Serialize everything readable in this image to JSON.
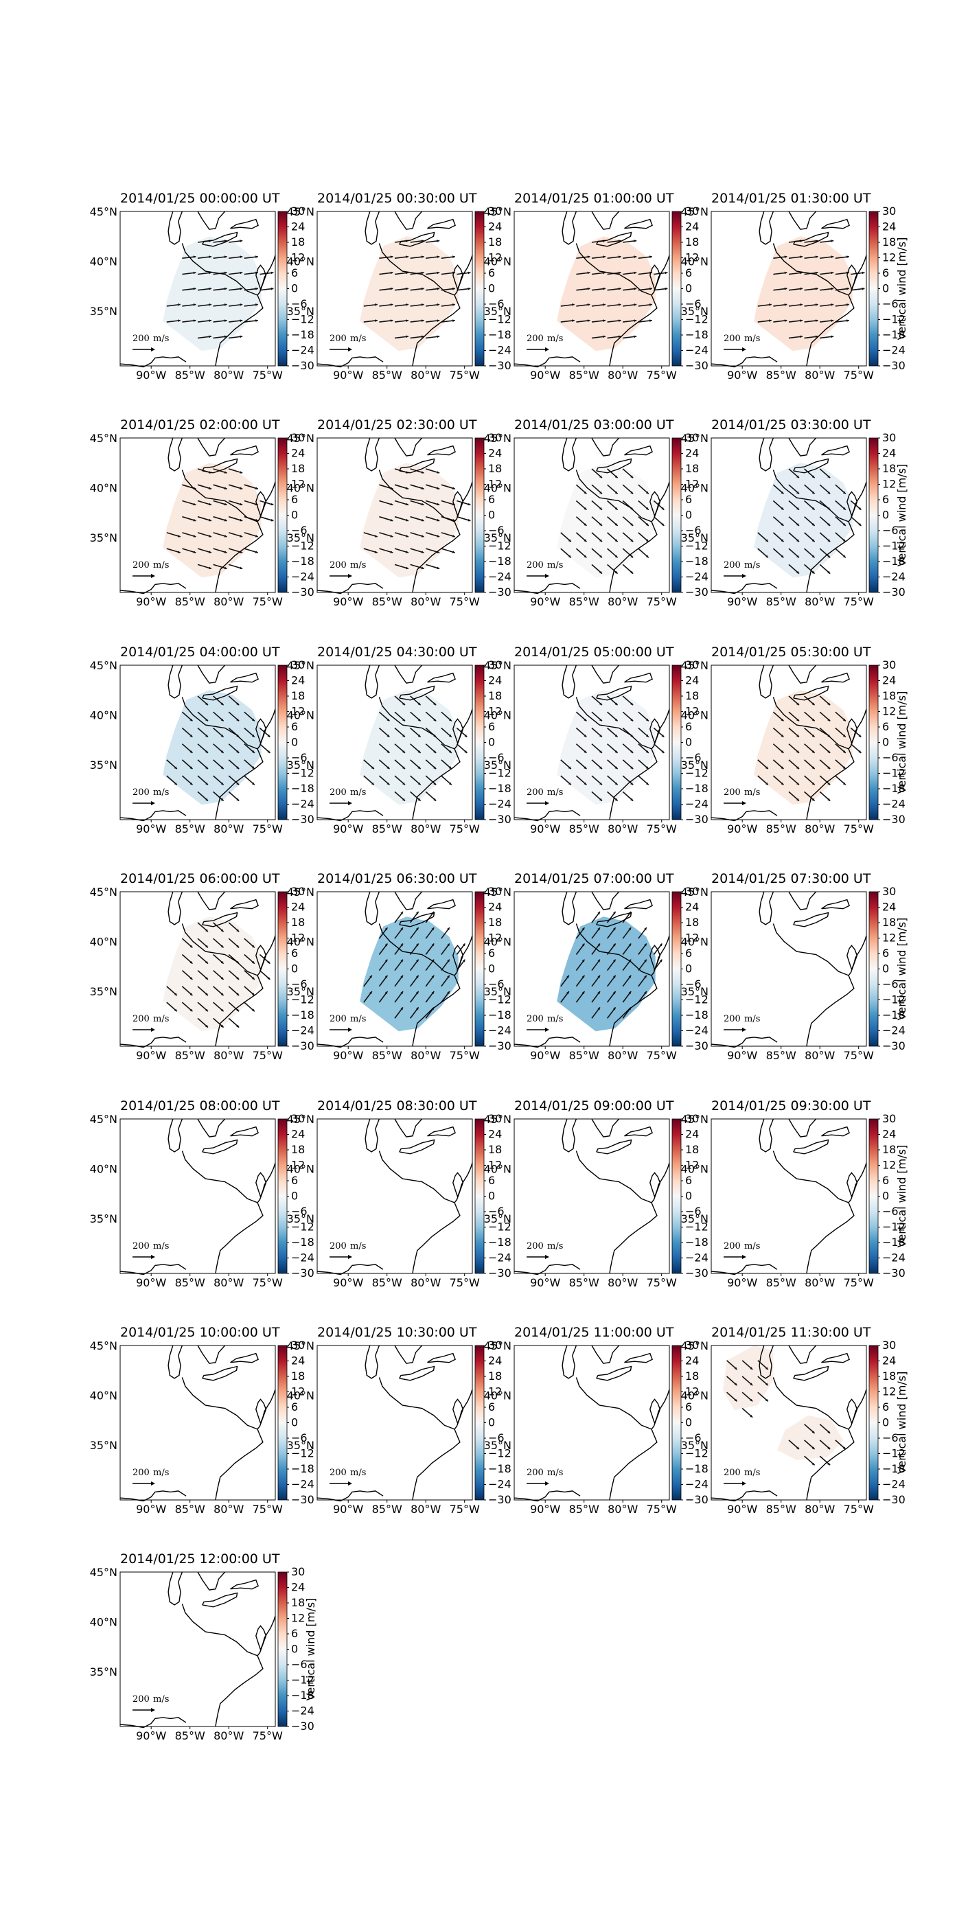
{
  "figure": {
    "colorbar_label": "Vertical wind [m/s]",
    "colorbar_ticks": [
      "30",
      "24",
      "18",
      "12",
      "6",
      "0",
      "−6",
      "−12",
      "−18",
      "−24",
      "−30"
    ],
    "lat_ticks": [
      "45°N",
      "40°N",
      "35°N"
    ],
    "lon_ticks": [
      "90°W",
      "85°W",
      "80°W",
      "75°W"
    ],
    "reference_vector": {
      "value": "200",
      "unit": "m/s"
    },
    "colormap": "RdBu_r",
    "colors": {
      "coast": "#000000",
      "vector": "#111111"
    }
  },
  "chart_data": [
    {
      "type": "heatmap",
      "title": "2014/01/25 00:00:00 UT",
      "vertical_wind_m_s": -2,
      "vector_direction": "eastward",
      "coverage": "southeast"
    },
    {
      "type": "heatmap",
      "title": "2014/01/25 00:30:00 UT",
      "vertical_wind_m_s": 3,
      "vector_direction": "eastward",
      "coverage": "southeast"
    },
    {
      "type": "heatmap",
      "title": "2014/01/25 01:00:00 UT",
      "vertical_wind_m_s": 4,
      "vector_direction": "eastward",
      "coverage": "southeast"
    },
    {
      "type": "heatmap",
      "title": "2014/01/25 01:30:00 UT",
      "vertical_wind_m_s": 4,
      "vector_direction": "eastward",
      "coverage": "southeast"
    },
    {
      "type": "heatmap",
      "title": "2014/01/25 02:00:00 UT",
      "vertical_wind_m_s": 3,
      "vector_direction": "east-southeast",
      "coverage": "southeast"
    },
    {
      "type": "heatmap",
      "title": "2014/01/25 02:30:00 UT",
      "vertical_wind_m_s": 2,
      "vector_direction": "east-southeast",
      "coverage": "southeast"
    },
    {
      "type": "heatmap",
      "title": "2014/01/25 03:00:00 UT",
      "vertical_wind_m_s": 0,
      "vector_direction": "southeast",
      "coverage": "southeast"
    },
    {
      "type": "heatmap",
      "title": "2014/01/25 03:30:00 UT",
      "vertical_wind_m_s": -3,
      "vector_direction": "southeast",
      "coverage": "southeast"
    },
    {
      "type": "heatmap",
      "title": "2014/01/25 04:00:00 UT",
      "vertical_wind_m_s": -6,
      "vector_direction": "southeast",
      "coverage": "southeast"
    },
    {
      "type": "heatmap",
      "title": "2014/01/25 04:30:00 UT",
      "vertical_wind_m_s": -2,
      "vector_direction": "southeast",
      "coverage": "southeast"
    },
    {
      "type": "heatmap",
      "title": "2014/01/25 05:00:00 UT",
      "vertical_wind_m_s": -1,
      "vector_direction": "southeast",
      "coverage": "southeast"
    },
    {
      "type": "heatmap",
      "title": "2014/01/25 05:30:00 UT",
      "vertical_wind_m_s": 3,
      "vector_direction": "southeast",
      "coverage": "southeast"
    },
    {
      "type": "heatmap",
      "title": "2014/01/25 06:00:00 UT",
      "vertical_wind_m_s": 1,
      "vector_direction": "southeast",
      "coverage": "southeast"
    },
    {
      "type": "heatmap",
      "title": "2014/01/25 06:30:00 UT",
      "vertical_wind_m_s": -12,
      "vector_direction": "northeast",
      "coverage": "southeast"
    },
    {
      "type": "heatmap",
      "title": "2014/01/25 07:00:00 UT",
      "vertical_wind_m_s": -13,
      "vector_direction": "northeast",
      "coverage": "southeast"
    },
    {
      "type": "heatmap",
      "title": "2014/01/25 07:30:00 UT",
      "vertical_wind_m_s": null,
      "vector_direction": null,
      "coverage": "none"
    },
    {
      "type": "heatmap",
      "title": "2014/01/25 08:00:00 UT",
      "vertical_wind_m_s": null,
      "vector_direction": null,
      "coverage": "none"
    },
    {
      "type": "heatmap",
      "title": "2014/01/25 08:30:00 UT",
      "vertical_wind_m_s": null,
      "vector_direction": null,
      "coverage": "none"
    },
    {
      "type": "heatmap",
      "title": "2014/01/25 09:00:00 UT",
      "vertical_wind_m_s": null,
      "vector_direction": null,
      "coverage": "none"
    },
    {
      "type": "heatmap",
      "title": "2014/01/25 09:30:00 UT",
      "vertical_wind_m_s": null,
      "vector_direction": null,
      "coverage": "none"
    },
    {
      "type": "heatmap",
      "title": "2014/01/25 10:00:00 UT",
      "vertical_wind_m_s": null,
      "vector_direction": null,
      "coverage": "none"
    },
    {
      "type": "heatmap",
      "title": "2014/01/25 10:30:00 UT",
      "vertical_wind_m_s": null,
      "vector_direction": null,
      "coverage": "none"
    },
    {
      "type": "heatmap",
      "title": "2014/01/25 11:00:00 UT",
      "vertical_wind_m_s": null,
      "vector_direction": null,
      "coverage": "none"
    },
    {
      "type": "heatmap",
      "title": "2014/01/25 11:30:00 UT",
      "vertical_wind_m_s": 2,
      "vector_direction": "southeast",
      "coverage": "split"
    },
    {
      "type": "heatmap",
      "title": "2014/01/25 12:00:00 UT",
      "vertical_wind_m_s": null,
      "vector_direction": null,
      "coverage": "none"
    }
  ]
}
